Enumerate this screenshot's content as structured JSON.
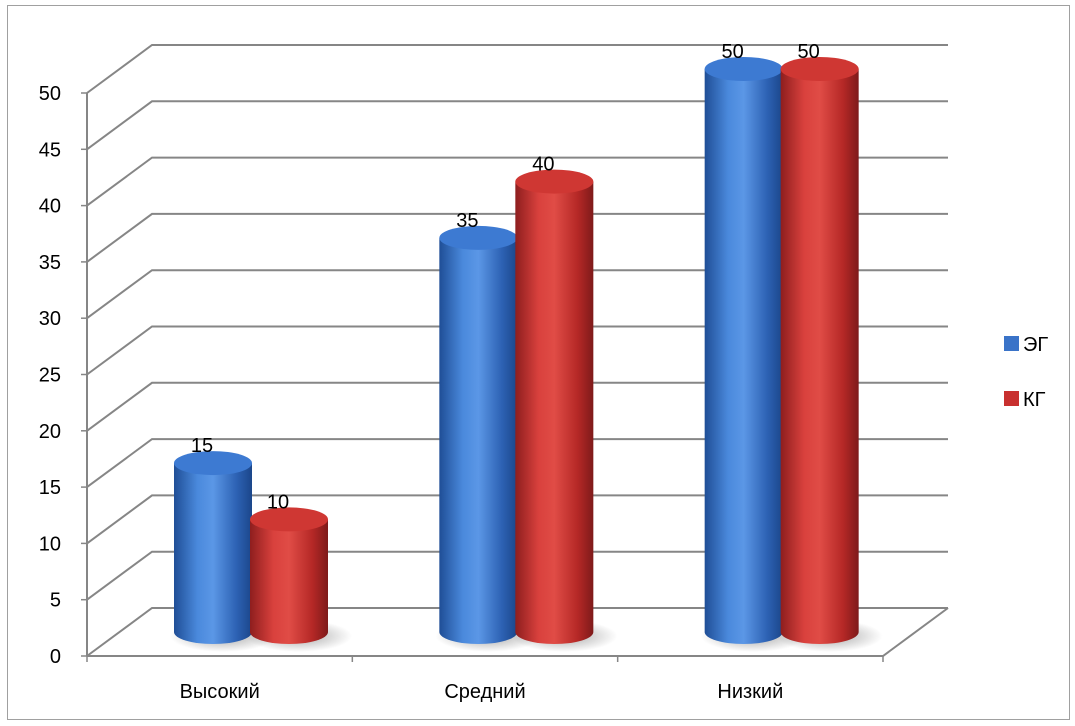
{
  "chart_data": {
    "type": "bar",
    "categories": [
      "Высокий",
      "Средний",
      "Низкий"
    ],
    "series": [
      {
        "name": "ЭГ",
        "values": [
          15,
          35,
          50
        ],
        "color": "#3a73c8"
      },
      {
        "name": "КГ",
        "values": [
          10,
          40,
          50
        ],
        "color": "#c8302f"
      }
    ],
    "ylim": [
      0,
      50
    ],
    "yticks": [
      0,
      5,
      10,
      15,
      20,
      25,
      30,
      35,
      40,
      45,
      50
    ],
    "grid": true,
    "legend_position": "right",
    "style": "3d-cylinder"
  }
}
